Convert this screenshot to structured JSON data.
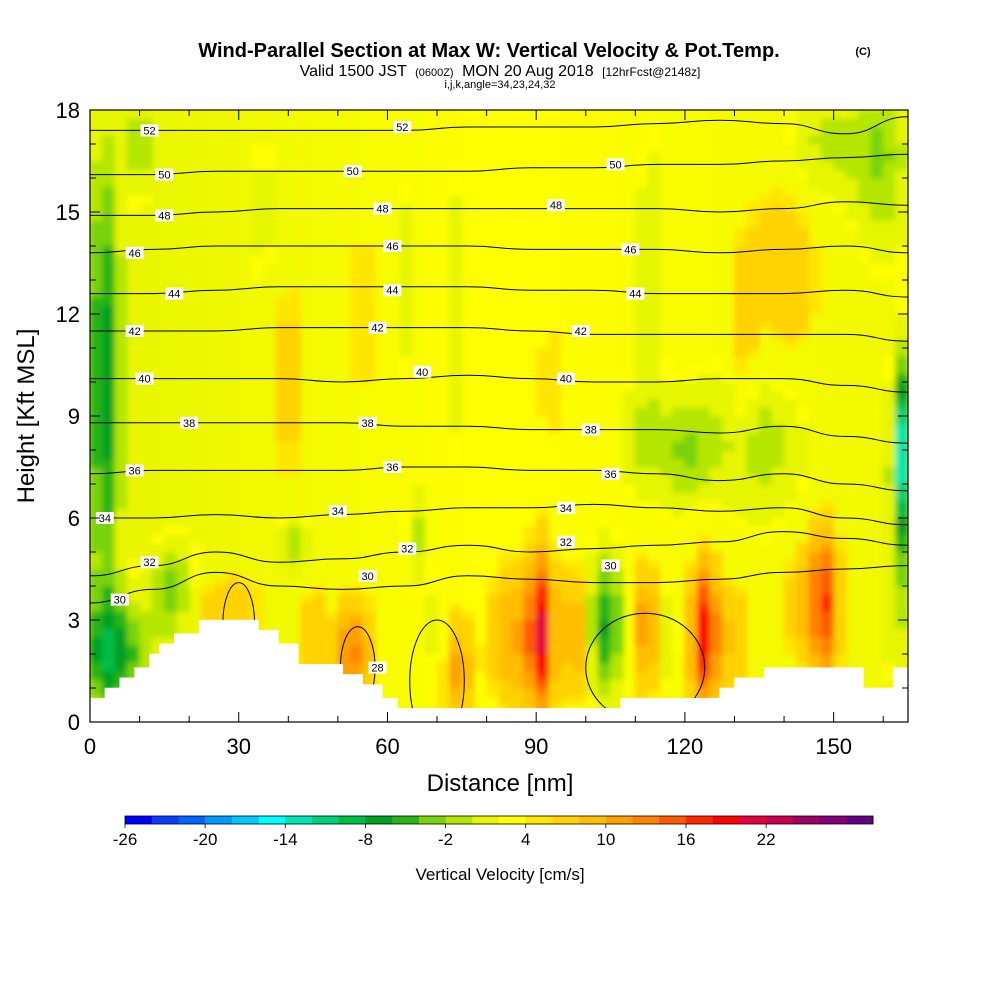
{
  "chart_data": {
    "type": "heatmap",
    "title": "Wind-Parallel Section at Max W: Vertical Velocity & Pot.Temp.",
    "title_tag": "(C)",
    "subtitle": {
      "prefix": "Valid 1500 JST",
      "utc": "(0600Z)",
      "date": "MON 20 Aug 2018",
      "forecast": "[12hrFcst@2148z]"
    },
    "indices": "i,j,k,angle=34,23,24,32",
    "xlabel": "Distance [nm]",
    "ylabel": "Height [Kft MSL]",
    "xlim": [
      0,
      165
    ],
    "ylim": [
      0,
      18
    ],
    "x_ticks": [
      0,
      30,
      60,
      90,
      120,
      150
    ],
    "y_ticks": [
      0,
      3,
      6,
      9,
      12,
      15,
      18
    ],
    "colorbar": {
      "label": "Vertical Velocity [cm/s]",
      "tick_labels": [
        "-26",
        "-20",
        "-14",
        "-8",
        "-2",
        "4",
        "10",
        "16",
        "22"
      ],
      "colors": [
        "#0000ff",
        "#0a3cff",
        "#0066ff",
        "#0099ff",
        "#00c8ff",
        "#00ffff",
        "#00e6b4",
        "#00d278",
        "#00be46",
        "#00a020",
        "#28b414",
        "#78d20a",
        "#b4e600",
        "#e6f500",
        "#ffff00",
        "#ffe600",
        "#ffd200",
        "#ffbe00",
        "#ffa000",
        "#ff8200",
        "#ff5a00",
        "#ff2800",
        "#ff0000",
        "#e6003c",
        "#c80050",
        "#a00064",
        "#820078",
        "#640082"
      ]
    },
    "potential_temperature_contours": [
      {
        "value": 30,
        "y": [
          3.5,
          3.9,
          4.4,
          4.0,
          3.9,
          4.0,
          4.3,
          4.2,
          4.1,
          4.1,
          4.2,
          4.4,
          4.5,
          4.6
        ]
      },
      {
        "value": 32,
        "y": [
          4.3,
          4.6,
          5.0,
          4.7,
          4.8,
          5.0,
          5.2,
          5.0,
          5.1,
          5.2,
          5.3,
          5.6,
          5.4,
          5.2
        ]
      },
      {
        "value": 34,
        "y": [
          6.0,
          6.0,
          6.1,
          6.0,
          6.1,
          6.2,
          6.3,
          6.3,
          6.4,
          6.3,
          6.2,
          6.3,
          6.0,
          5.8
        ]
      },
      {
        "value": 36,
        "y": [
          7.3,
          7.4,
          7.4,
          7.4,
          7.4,
          7.5,
          7.5,
          7.4,
          7.4,
          7.3,
          7.1,
          7.3,
          7.0,
          6.8
        ]
      },
      {
        "value": 38,
        "y": [
          8.8,
          8.8,
          8.8,
          8.8,
          8.8,
          8.7,
          8.7,
          8.6,
          8.6,
          8.6,
          8.5,
          8.7,
          8.4,
          8.2
        ]
      },
      {
        "value": 40,
        "y": [
          10.1,
          10.1,
          10.1,
          10.1,
          10.0,
          10.1,
          10.2,
          10.1,
          10.0,
          10.0,
          10.1,
          10.1,
          9.9,
          9.7
        ]
      },
      {
        "value": 42,
        "y": [
          11.5,
          11.5,
          11.5,
          11.6,
          11.6,
          11.6,
          11.6,
          11.5,
          11.4,
          11.4,
          11.4,
          11.4,
          11.4,
          11.2
        ]
      },
      {
        "value": 44,
        "y": [
          12.6,
          12.6,
          12.7,
          12.8,
          12.8,
          12.8,
          12.8,
          12.7,
          12.7,
          12.6,
          12.6,
          12.6,
          12.7,
          12.5
        ]
      },
      {
        "value": 46,
        "y": [
          13.8,
          13.9,
          14.0,
          14.0,
          14.0,
          14.0,
          14.0,
          13.9,
          13.9,
          13.9,
          13.8,
          13.9,
          14.0,
          13.8
        ]
      },
      {
        "value": 48,
        "y": [
          14.9,
          14.9,
          15.0,
          15.1,
          15.1,
          15.1,
          15.1,
          15.1,
          15.1,
          15.1,
          15.0,
          15.1,
          15.3,
          15.2
        ]
      },
      {
        "value": 50,
        "y": [
          16.1,
          16.1,
          16.2,
          16.2,
          16.2,
          16.2,
          16.2,
          16.3,
          16.3,
          16.4,
          16.4,
          16.5,
          16.6,
          16.7
        ]
      },
      {
        "value": 52,
        "y": [
          17.4,
          17.4,
          17.4,
          17.4,
          17.4,
          17.4,
          17.5,
          17.5,
          17.5,
          17.6,
          17.7,
          17.6,
          17.3,
          17.8
        ]
      }
    ],
    "contour_x": [
      0,
      12.7,
      25.4,
      38.1,
      50.8,
      63.5,
      76.2,
      88.9,
      101.6,
      114.3,
      127,
      139.7,
      152.4,
      165
    ],
    "contour_labels": [
      {
        "text": "52",
        "x": 12,
        "y": 17.4
      },
      {
        "text": "52",
        "x": 63,
        "y": 17.5
      },
      {
        "text": "50",
        "x": 15,
        "y": 16.1
      },
      {
        "text": "50",
        "x": 53,
        "y": 16.2
      },
      {
        "text": "50",
        "x": 106,
        "y": 16.4
      },
      {
        "text": "48",
        "x": 15,
        "y": 14.9
      },
      {
        "text": "48",
        "x": 59,
        "y": 15.1
      },
      {
        "text": "48",
        "x": 94,
        "y": 15.2
      },
      {
        "text": "46",
        "x": 9,
        "y": 13.8
      },
      {
        "text": "46",
        "x": 61,
        "y": 14.0
      },
      {
        "text": "46",
        "x": 109,
        "y": 13.9
      },
      {
        "text": "44",
        "x": 17,
        "y": 12.6
      },
      {
        "text": "44",
        "x": 61,
        "y": 12.7
      },
      {
        "text": "44",
        "x": 110,
        "y": 12.6
      },
      {
        "text": "42",
        "x": 9,
        "y": 11.5
      },
      {
        "text": "42",
        "x": 58,
        "y": 11.6
      },
      {
        "text": "42",
        "x": 99,
        "y": 11.5
      },
      {
        "text": "40",
        "x": 11,
        "y": 10.1
      },
      {
        "text": "40",
        "x": 67,
        "y": 10.3
      },
      {
        "text": "40",
        "x": 96,
        "y": 10.1
      },
      {
        "text": "38",
        "x": 20,
        "y": 8.8
      },
      {
        "text": "38",
        "x": 56,
        "y": 8.8
      },
      {
        "text": "38",
        "x": 101,
        "y": 8.6
      },
      {
        "text": "36",
        "x": 9,
        "y": 7.4
      },
      {
        "text": "36",
        "x": 61,
        "y": 7.5
      },
      {
        "text": "36",
        "x": 105,
        "y": 7.3
      },
      {
        "text": "34",
        "x": 3,
        "y": 6.0
      },
      {
        "text": "34",
        "x": 50,
        "y": 6.2
      },
      {
        "text": "34",
        "x": 96,
        "y": 6.3
      },
      {
        "text": "32",
        "x": 12,
        "y": 4.7
      },
      {
        "text": "32",
        "x": 64,
        "y": 5.1
      },
      {
        "text": "32",
        "x": 96,
        "y": 5.3
      },
      {
        "text": "30",
        "x": 6,
        "y": 3.6
      },
      {
        "text": "30",
        "x": 56,
        "y": 4.3
      },
      {
        "text": "30",
        "x": 105,
        "y": 4.6
      },
      {
        "text": "28",
        "x": 58,
        "y": 1.6
      }
    ],
    "terrain": [
      [
        0,
        0.7
      ],
      [
        3,
        0.7
      ],
      [
        3,
        1.0
      ],
      [
        6,
        1.0
      ],
      [
        6,
        1.3
      ],
      [
        9,
        1.3
      ],
      [
        9,
        1.6
      ],
      [
        12,
        1.6
      ],
      [
        12,
        2.0
      ],
      [
        14,
        2.0
      ],
      [
        14,
        2.3
      ],
      [
        17,
        2.3
      ],
      [
        17,
        2.6
      ],
      [
        22,
        2.6
      ],
      [
        22,
        3.0
      ],
      [
        34,
        3.0
      ],
      [
        34,
        2.7
      ],
      [
        38,
        2.7
      ],
      [
        38,
        2.3
      ],
      [
        42,
        2.3
      ],
      [
        42,
        1.7
      ],
      [
        51,
        1.7
      ],
      [
        51,
        1.4
      ],
      [
        55,
        1.4
      ],
      [
        55,
        1.1
      ],
      [
        59,
        1.1
      ],
      [
        59,
        0.7
      ],
      [
        62,
        0.7
      ],
      [
        62,
        0.4
      ],
      [
        107,
        0.4
      ],
      [
        107,
        0.7
      ],
      [
        127,
        0.7
      ],
      [
        127,
        1.0
      ],
      [
        130,
        1.0
      ],
      [
        130,
        1.3
      ],
      [
        136,
        1.3
      ],
      [
        136,
        1.6
      ],
      [
        156,
        1.6
      ],
      [
        156,
        1.0
      ],
      [
        162,
        1.0
      ],
      [
        162,
        1.6
      ],
      [
        165,
        1.6
      ]
    ]
  }
}
